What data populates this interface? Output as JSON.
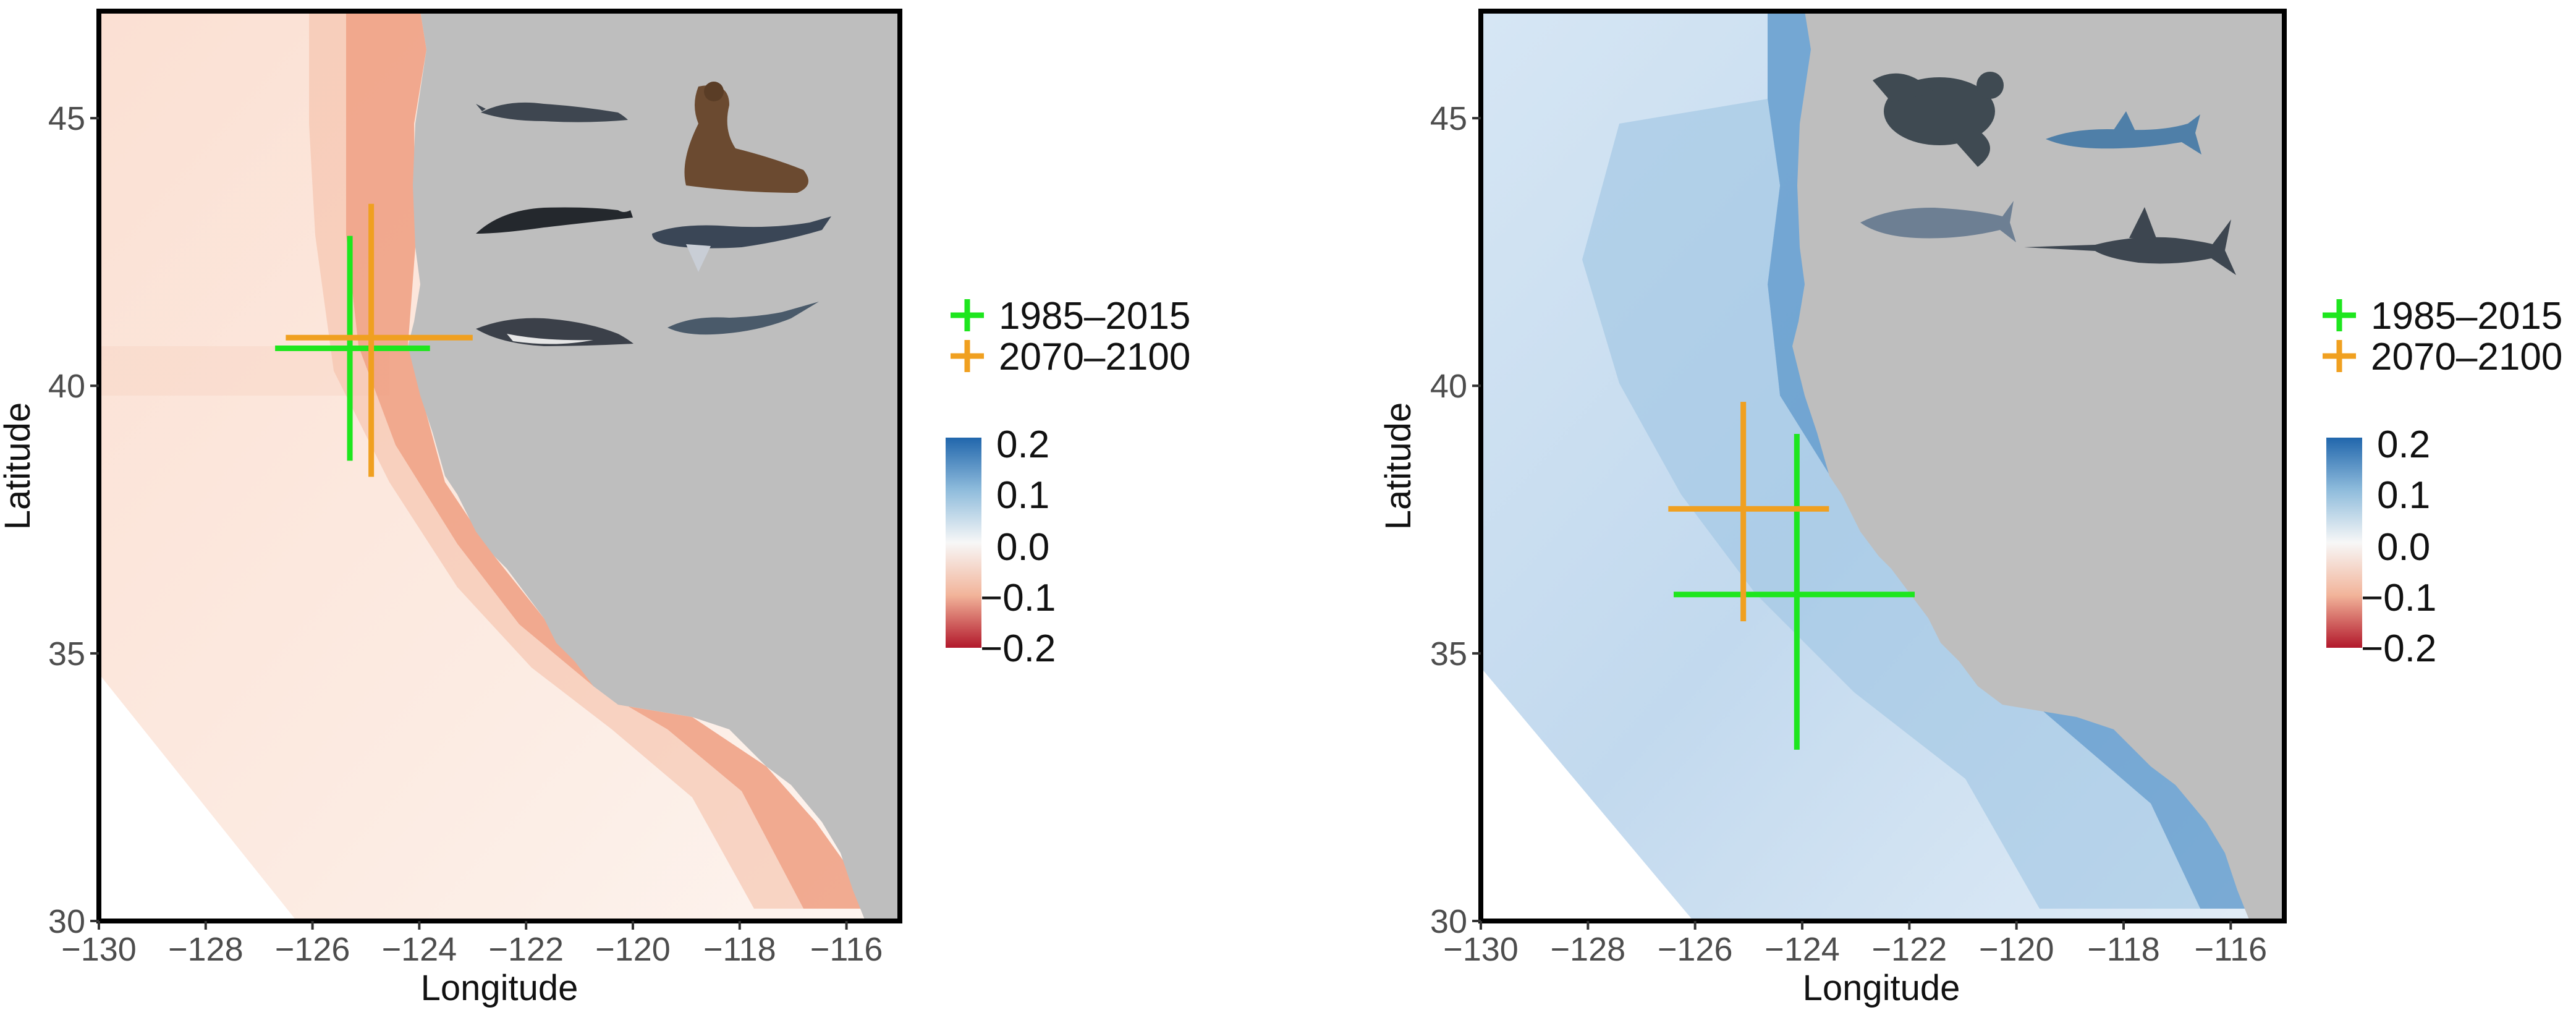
{
  "panels": [
    {
      "id": "left",
      "theme": "warm",
      "crosshairs": [
        {
          "period_index": 0,
          "lon": -125.3,
          "lat": 40.7,
          "lon_lo": -126.7,
          "lon_hi": -123.8,
          "lat_lo": 38.6,
          "lat_hi": 42.8
        },
        {
          "period_index": 1,
          "lon": -124.9,
          "lat": 40.9,
          "lon_lo": -126.5,
          "lon_hi": -123.0,
          "lat_lo": 38.3,
          "lat_hi": 43.4
        }
      ],
      "silhouettes": [
        "fin-whale-icon",
        "sea-lion-icon",
        "right-whale-icon",
        "humpback-whale-icon",
        "dolphin-icon",
        "thresher-shark-icon"
      ]
    },
    {
      "id": "right",
      "theme": "cool",
      "crosshairs": [
        {
          "period_index": 0,
          "lon": -124.1,
          "lat": 36.1,
          "lon_lo": -126.4,
          "lon_hi": -121.9,
          "lat_lo": 33.2,
          "lat_hi": 39.1
        },
        {
          "period_index": 1,
          "lon": -125.1,
          "lat": 37.7,
          "lon_lo": -126.5,
          "lon_hi": -123.5,
          "lat_lo": 35.6,
          "lat_hi": 39.7
        }
      ],
      "silhouettes": [
        "leatherback-turtle-icon",
        "blue-shark-icon",
        "dolphin-icon",
        "swordfish-icon"
      ]
    }
  ],
  "axes": {
    "xlabel": "Longitude",
    "ylabel": "Latitude",
    "xlim": [
      -130,
      -115
    ],
    "ylim": [
      30,
      47
    ],
    "xticks": [
      "−130",
      "−128",
      "−126",
      "−124",
      "−122",
      "−120",
      "−118",
      "−116"
    ],
    "xtick_values": [
      -130,
      -128,
      -126,
      -124,
      -122,
      -120,
      -118,
      -116
    ],
    "yticks": [
      "30",
      "35",
      "40",
      "45"
    ],
    "ytick_values": [
      30,
      35,
      40,
      45
    ]
  },
  "legend": {
    "items": [
      {
        "label": "1985–2015",
        "color": "#1ee61e"
      },
      {
        "label": "2070–2100",
        "color": "#f0a020"
      }
    ]
  },
  "colorbar": {
    "labels": [
      "0.2",
      "0.1",
      "0.0",
      "−0.1",
      "−0.2"
    ],
    "values": [
      0.2,
      0.1,
      0.0,
      -0.1,
      -0.2
    ],
    "colors": [
      "#2166ac",
      "#6ba3d0",
      "#f7f7f7",
      "#f4a582",
      "#b2182b"
    ]
  },
  "colors": {
    "land": "#bebebe",
    "frame": "#000000",
    "warm_shelf": "#ec9a7d",
    "warm_offshore": "#fbe5da",
    "cool_shelf": "#5f9ecf",
    "cool_offshore": "#dce9f5"
  }
}
